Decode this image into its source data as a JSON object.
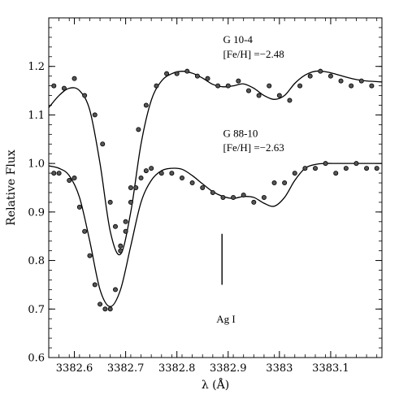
{
  "chart_data": {
    "type": "line",
    "title": "",
    "xlabel": "λ (Å)",
    "ylabel": "Relative Flux",
    "xlim": [
      3382.55,
      3383.2
    ],
    "ylim": [
      0.6,
      1.3
    ],
    "xticks": [
      {
        "value": 3382.6,
        "label": "3382.6"
      },
      {
        "value": 3382.7,
        "label": "3382.7"
      },
      {
        "value": 3382.8,
        "label": "3382.8"
      },
      {
        "value": 3382.9,
        "label": "3382.9"
      },
      {
        "value": 3383.0,
        "label": "3383"
      },
      {
        "value": 3383.1,
        "label": "3383.1"
      }
    ],
    "yticks": [
      {
        "value": 0.6,
        "label": "0.6"
      },
      {
        "value": 0.7,
        "label": "0.7"
      },
      {
        "value": 0.8,
        "label": "0.8"
      },
      {
        "value": 0.9,
        "label": "0.9"
      },
      {
        "value": 1.0,
        "label": "1.0"
      },
      {
        "value": 1.1,
        "label": "1.1"
      },
      {
        "value": 1.2,
        "label": "1.2"
      }
    ],
    "grid": false,
    "series": [
      {
        "name": "G 10-4",
        "metallicity": "[Fe/H] =−2.48",
        "model": {
          "x": [
            3382.55,
            3382.57,
            3382.59,
            3382.61,
            3382.63,
            3382.65,
            3382.67,
            3382.69,
            3382.71,
            3382.73,
            3382.75,
            3382.77,
            3382.79,
            3382.81,
            3382.83,
            3382.85,
            3382.87,
            3382.89,
            3382.91,
            3382.93,
            3382.95,
            3382.97,
            3382.99,
            3383.01,
            3383.03,
            3383.05,
            3383.07,
            3383.09,
            3383.11,
            3383.13,
            3383.15,
            3383.17,
            3383.2
          ],
          "y": [
            1.115,
            1.14,
            1.155,
            1.15,
            1.11,
            1.0,
            0.86,
            0.813,
            0.9,
            1.04,
            1.13,
            1.17,
            1.185,
            1.19,
            1.186,
            1.176,
            1.163,
            1.158,
            1.16,
            1.164,
            1.155,
            1.14,
            1.132,
            1.14,
            1.165,
            1.182,
            1.19,
            1.189,
            1.184,
            1.178,
            1.173,
            1.17,
            1.168
          ]
        },
        "points": {
          "x": [
            3382.56,
            3382.58,
            3382.6,
            3382.62,
            3382.64,
            3382.655,
            3382.67,
            3382.68,
            3382.69,
            3382.7,
            3382.71,
            3382.725,
            3382.74,
            3382.76,
            3382.78,
            3382.8,
            3382.82,
            3382.84,
            3382.86,
            3382.88,
            3382.9,
            3382.92,
            3382.94,
            3382.96,
            3382.98,
            3383.0,
            3383.02,
            3383.04,
            3383.06,
            3383.08,
            3383.1,
            3383.12,
            3383.14,
            3383.16,
            3383.18
          ],
          "y": [
            1.16,
            1.155,
            1.175,
            1.14,
            1.1,
            1.04,
            0.92,
            0.87,
            0.83,
            0.86,
            0.95,
            1.07,
            1.12,
            1.16,
            1.185,
            1.185,
            1.19,
            1.18,
            1.175,
            1.16,
            1.16,
            1.17,
            1.15,
            1.14,
            1.16,
            1.14,
            1.13,
            1.16,
            1.18,
            1.19,
            1.18,
            1.17,
            1.16,
            1.17,
            1.16
          ]
        }
      },
      {
        "name": "G 88-10",
        "metallicity": "[Fe/H] =−2.63",
        "model": {
          "x": [
            3382.55,
            3382.57,
            3382.59,
            3382.61,
            3382.63,
            3382.65,
            3382.67,
            3382.69,
            3382.71,
            3382.73,
            3382.75,
            3382.77,
            3382.79,
            3382.81,
            3382.83,
            3382.85,
            3382.87,
            3382.89,
            3382.91,
            3382.93,
            3382.95,
            3382.97,
            3382.99,
            3383.01,
            3383.03,
            3383.05,
            3383.07,
            3383.09,
            3383.11,
            3383.13,
            3383.15,
            3383.17,
            3383.2
          ],
          "y": [
            0.995,
            0.99,
            0.975,
            0.93,
            0.84,
            0.74,
            0.705,
            0.74,
            0.83,
            0.92,
            0.965,
            0.985,
            0.99,
            0.988,
            0.975,
            0.958,
            0.942,
            0.932,
            0.928,
            0.932,
            0.93,
            0.918,
            0.912,
            0.93,
            0.965,
            0.99,
            0.998,
            1.0,
            1.0,
            1.0,
            1.0,
            1.0,
            1.0
          ]
        },
        "points": {
          "x": [
            3382.56,
            3382.57,
            3382.59,
            3382.6,
            3382.61,
            3382.62,
            3382.63,
            3382.64,
            3382.65,
            3382.66,
            3382.67,
            3382.68,
            3382.69,
            3382.7,
            3382.71,
            3382.72,
            3382.73,
            3382.74,
            3382.75,
            3382.77,
            3382.79,
            3382.81,
            3382.83,
            3382.85,
            3382.87,
            3382.89,
            3382.91,
            3382.93,
            3382.95,
            3382.97,
            3382.99,
            3383.01,
            3383.03,
            3383.05,
            3383.07,
            3383.09,
            3383.11,
            3383.13,
            3383.15,
            3383.17,
            3383.19
          ],
          "y": [
            0.98,
            0.98,
            0.965,
            0.97,
            0.91,
            0.86,
            0.81,
            0.75,
            0.71,
            0.7,
            0.7,
            0.74,
            0.82,
            0.88,
            0.92,
            0.95,
            0.97,
            0.985,
            0.99,
            0.98,
            0.98,
            0.97,
            0.96,
            0.95,
            0.94,
            0.93,
            0.93,
            0.935,
            0.92,
            0.93,
            0.96,
            0.96,
            0.98,
            0.99,
            0.99,
            1.0,
            0.98,
            0.99,
            1.0,
            0.99,
            0.99
          ]
        }
      }
    ],
    "annotations": [
      {
        "label": "G 10-4",
        "x": 3382.89,
        "y": 1.248
      },
      {
        "label": "[Fe/H] =−2.48",
        "x": 3382.89,
        "y": 1.218
      },
      {
        "label": "G 88-10",
        "x": 3382.89,
        "y": 1.055
      },
      {
        "label": "[Fe/H] =−2.63",
        "x": 3382.89,
        "y": 1.025
      },
      {
        "label": "Ag I",
        "x": 3382.877,
        "y": 0.672
      }
    ],
    "marker_line": {
      "x": 3382.888,
      "y1": 0.75,
      "y2": 0.855
    }
  }
}
